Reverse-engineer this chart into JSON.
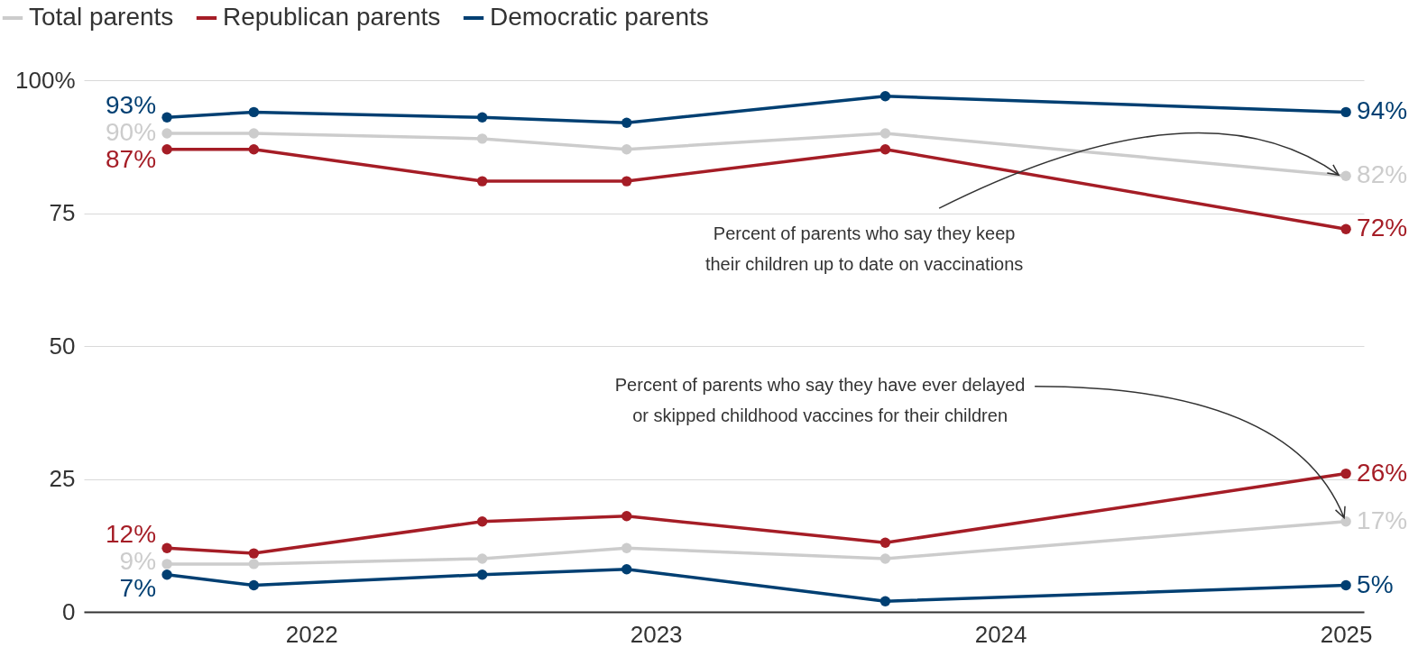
{
  "chart_data": {
    "type": "line",
    "x": [
      "2021-08",
      "2021-11",
      "2022-07",
      "2022-12",
      "2023-09",
      "2025-01"
    ],
    "xlim": [
      "2021-05-05",
      "2025-01-20"
    ],
    "xticks": [
      "2022",
      "2023",
      "2024",
      "2025"
    ],
    "ylim": [
      0,
      100
    ],
    "yticks": [
      0,
      25,
      50,
      75,
      {
        "value": 100,
        "label": "100%"
      }
    ],
    "grid": "y",
    "legend": "top left",
    "marker": "circle",
    "series": [
      {
        "name": "Total parents",
        "color": "#cccccc",
        "values": [
          90,
          90,
          89,
          87,
          90,
          82
        ],
        "value_labels": [
          "90%",
          null,
          null,
          null,
          null,
          "82%"
        ]
      },
      {
        "name": "Republican parents",
        "color": "#a51d26",
        "values": [
          87,
          87,
          81,
          81,
          87,
          72
        ],
        "value_labels": [
          "87%",
          null,
          null,
          null,
          null,
          "72%"
        ]
      },
      {
        "name": "Democratic parents",
        "color": "#003f72",
        "values": [
          93,
          94,
          93,
          92,
          97,
          94
        ],
        "value_labels": [
          "93%",
          null,
          null,
          null,
          null,
          "94%"
        ]
      },
      {
        "color": "#cccccc",
        "values": [
          9,
          9,
          10,
          12,
          10,
          17
        ],
        "value_labels": [
          "9%",
          null,
          null,
          null,
          null,
          "17%"
        ]
      },
      {
        "color": "#a51d26",
        "values": [
          12,
          11,
          17,
          18,
          13,
          26
        ],
        "value_labels": [
          "12%",
          null,
          null,
          null,
          null,
          "26%"
        ]
      },
      {
        "color": "#003f72",
        "values": [
          7,
          5,
          7,
          8,
          2,
          5
        ],
        "value_labels": [
          "7%",
          null,
          null,
          null,
          null,
          "5%"
        ]
      }
    ],
    "annotations": [
      {
        "text": "Percent of parents who say they  keep\ntheir children up to date on vaccinations",
        "x": "2025-01",
        "y": 82
      },
      {
        "text": "Percent of parents who say they have ever delayed\nor skipped childhood vaccines for their children",
        "x": "2025-01",
        "y": 17
      }
    ]
  }
}
